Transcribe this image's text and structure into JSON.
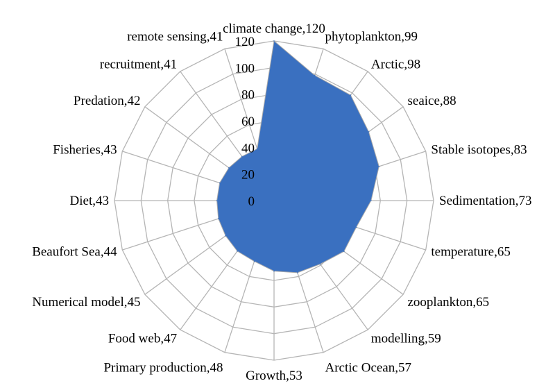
{
  "chart_data": {
    "type": "radar",
    "categories": [
      "climate change",
      "phytoplankton",
      "Arctic",
      "seaice",
      "Stable isotopes",
      "Sedimentation",
      "temperature",
      "zooplankton",
      "modelling",
      "Arctic Ocean",
      "Growth",
      "Primary production",
      "Food web",
      "Numerical model",
      "Beaufort Sea",
      "Diet",
      "Fisheries",
      "Predation",
      "recruitment",
      "remote sensing"
    ],
    "values": [
      120,
      99,
      98,
      88,
      83,
      73,
      65,
      65,
      59,
      57,
      53,
      48,
      47,
      45,
      44,
      43,
      43,
      42,
      41,
      41
    ],
    "labels": [
      "climate change,120",
      "phytoplankton,99",
      "Arctic,98",
      "seaice,88",
      "Stable isotopes,83",
      "Sedimentation,73",
      "temperature,65",
      "zooplankton,65",
      "modelling,59",
      "Arctic Ocean,57",
      "Growth,53",
      "Primary production,48",
      "Food web,47",
      "Numerical model,45",
      "Beaufort Sea,44",
      "Diet,43",
      "Fisheries,43",
      "Predation,42",
      "recruitment,41",
      "remote sensing,41"
    ],
    "r_ticks": [
      0,
      20,
      40,
      60,
      80,
      100,
      120
    ],
    "rlim": [
      0,
      120
    ],
    "fill_color": "#3a70c0",
    "grid_color": "#b5b5b5",
    "grid": true,
    "legend": "none"
  }
}
